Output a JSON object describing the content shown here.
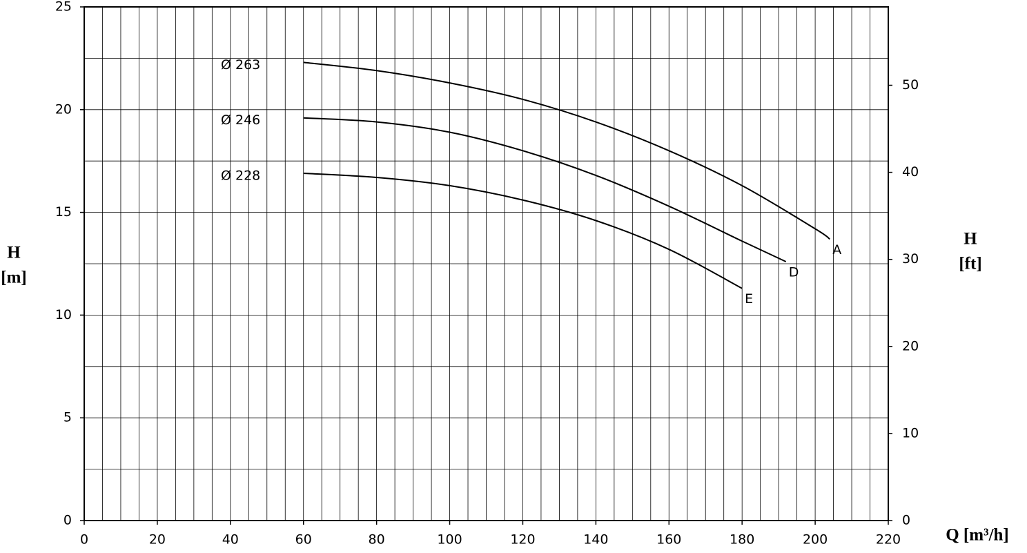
{
  "chart_data": {
    "type": "line",
    "ylabel": {
      "symbol": "H",
      "unit": "[m]"
    },
    "y2label": {
      "symbol": "H",
      "unit": "[ft]"
    },
    "xlabel": "Q [m³/h]",
    "xlim": [
      0,
      220
    ],
    "xticks": [
      0,
      20,
      40,
      60,
      80,
      100,
      120,
      140,
      160,
      180,
      200,
      220
    ],
    "ylim": [
      0,
      25
    ],
    "yticks": [
      0,
      5,
      10,
      15,
      20,
      25
    ],
    "y2lim": [
      0,
      59
    ],
    "y2ticks": [
      0,
      10,
      20,
      30,
      40,
      50
    ],
    "xgrid": [
      0,
      5,
      10,
      15,
      20,
      25,
      30,
      35,
      40,
      45,
      50,
      55,
      60,
      65,
      70,
      75,
      80,
      85,
      90,
      95,
      100,
      105,
      110,
      115,
      120,
      125,
      130,
      135,
      140,
      145,
      150,
      155,
      160,
      165,
      170,
      175,
      180,
      185,
      190,
      195,
      200,
      205,
      210,
      215,
      220
    ],
    "ygrid": [
      0,
      2.5,
      5,
      7.5,
      10,
      12.5,
      15,
      17.5,
      20,
      22.5,
      25
    ],
    "grid": true,
    "series": [
      {
        "name": "A",
        "label": "Ø 263",
        "color": "#000000",
        "x": [
          60,
          80,
          100,
          120,
          140,
          160,
          180,
          200,
          204
        ],
        "values": [
          22.3,
          21.9,
          21.3,
          20.5,
          19.4,
          18.0,
          16.3,
          14.2,
          13.7
        ]
      },
      {
        "name": "D",
        "label": "Ø 246",
        "color": "#000000",
        "x": [
          60,
          80,
          100,
          120,
          140,
          160,
          180,
          192
        ],
        "values": [
          19.6,
          19.4,
          18.9,
          18.0,
          16.8,
          15.3,
          13.6,
          12.6
        ]
      },
      {
        "name": "E",
        "label": "Ø 228",
        "color": "#000000",
        "x": [
          60,
          80,
          100,
          120,
          140,
          160,
          180
        ],
        "values": [
          16.9,
          16.7,
          16.3,
          15.6,
          14.6,
          13.2,
          11.3
        ]
      }
    ]
  }
}
